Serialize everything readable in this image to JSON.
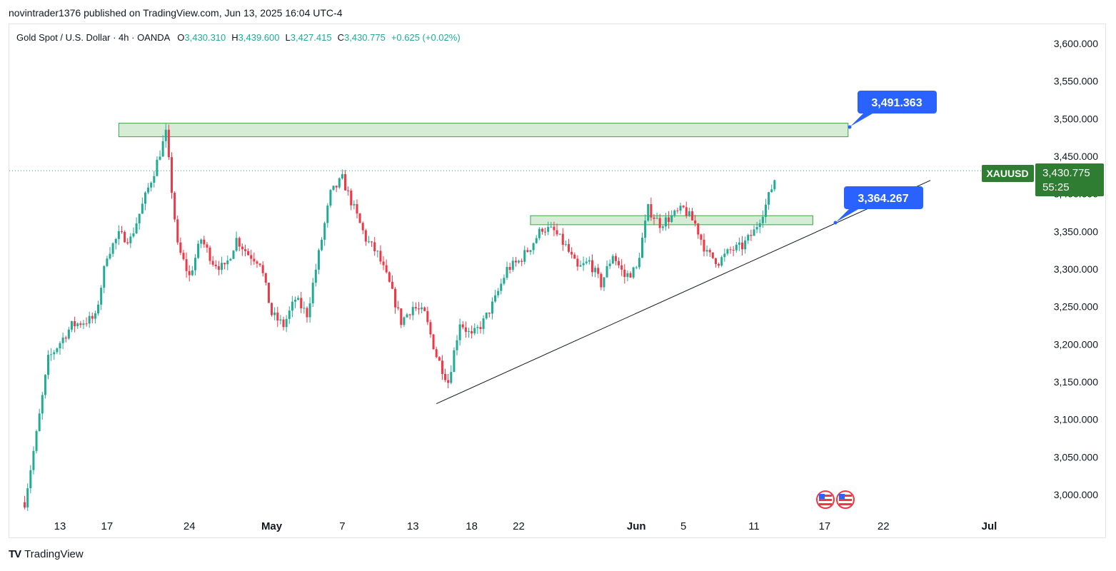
{
  "header": {
    "published_text": "novintrader1376 published on TradingView.com, Jun 13, 2025 16:04 UTC-4"
  },
  "legend": {
    "symbol": "Gold Spot / U.S. Dollar · 4h · OANDA",
    "open_label": "O",
    "open": "3,430.310",
    "high_label": "H",
    "high": "3,439.600",
    "low_label": "L",
    "low": "3,427.415",
    "close_label": "C",
    "close": "3,430.775",
    "change": "+0.625 (+0.02%)"
  },
  "price_badge": {
    "ticker": "XAUUSD",
    "price": "3,430.775",
    "countdown": "55:25"
  },
  "callouts": {
    "upper": "3,491.363",
    "lower": "3,364.267"
  },
  "footer": {
    "brand": "TradingView",
    "logo_text": "TV"
  },
  "colors": {
    "up": "#22ab94",
    "down": "#f23645",
    "zone": "#c8e6c9",
    "callout": "#2962ff",
    "badge": "#2e7d32"
  },
  "chart_data": {
    "type": "candlestick",
    "interval": "4h",
    "y_ticks": [
      "3,000.000",
      "3,050.000",
      "3,100.000",
      "3,150.000",
      "3,200.000",
      "3,250.000",
      "3,300.000",
      "3,350.000",
      "3,400.000",
      "3,450.000",
      "3,500.000",
      "3,550.000",
      "3,600.000"
    ],
    "x_ticks": [
      "13",
      "17",
      "24",
      "May",
      "7",
      "13",
      "18",
      "22",
      "Jun",
      "5",
      "11",
      "17",
      "22",
      "Jul"
    ],
    "ylim": [
      2970,
      3630
    ],
    "anchor_points": [
      {
        "date": "Apr 10",
        "price": 2990
      },
      {
        "date": "Apr 11",
        "price": 3080
      },
      {
        "date": "Apr 12",
        "price": 3180
      },
      {
        "date": "Apr 14",
        "price": 3225
      },
      {
        "date": "Apr 16",
        "price": 3235
      },
      {
        "date": "Apr 17",
        "price": 3320
      },
      {
        "date": "Apr 18",
        "price": 3345
      },
      {
        "date": "Apr 19",
        "price": 3340
      },
      {
        "date": "Apr 21",
        "price": 3430
      },
      {
        "date": "Apr 22",
        "price": 3480
      },
      {
        "date": "Apr 23",
        "price": 3330
      },
      {
        "date": "Apr 24",
        "price": 3290
      },
      {
        "date": "Apr 25",
        "price": 3340
      },
      {
        "date": "Apr 26",
        "price": 3310
      },
      {
        "date": "Apr 27",
        "price": 3300
      },
      {
        "date": "Apr 28",
        "price": 3340
      },
      {
        "date": "Apr 29",
        "price": 3320
      },
      {
        "date": "Apr 30",
        "price": 3310
      },
      {
        "date": "May 1",
        "price": 3240
      },
      {
        "date": "May 2",
        "price": 3225
      },
      {
        "date": "May 3",
        "price": 3260
      },
      {
        "date": "May 4",
        "price": 3240
      },
      {
        "date": "May 5",
        "price": 3320
      },
      {
        "date": "May 6",
        "price": 3400
      },
      {
        "date": "May 7",
        "price": 3420
      },
      {
        "date": "May 8",
        "price": 3380
      },
      {
        "date": "May 9",
        "price": 3340
      },
      {
        "date": "May 10",
        "price": 3320
      },
      {
        "date": "May 11",
        "price": 3280
      },
      {
        "date": "May 12",
        "price": 3230
      },
      {
        "date": "May 13",
        "price": 3250
      },
      {
        "date": "May 14",
        "price": 3240
      },
      {
        "date": "May 15",
        "price": 3185
      },
      {
        "date": "May 16",
        "price": 3150
      },
      {
        "date": "May 17",
        "price": 3230
      },
      {
        "date": "May 18",
        "price": 3210
      },
      {
        "date": "May 19",
        "price": 3230
      },
      {
        "date": "May 20",
        "price": 3260
      },
      {
        "date": "May 21",
        "price": 3300
      },
      {
        "date": "May 22",
        "price": 3310
      },
      {
        "date": "May 23",
        "price": 3330
      },
      {
        "date": "May 24",
        "price": 3355
      },
      {
        "date": "May 25",
        "price": 3350
      },
      {
        "date": "May 26",
        "price": 3330
      },
      {
        "date": "May 27",
        "price": 3300
      },
      {
        "date": "May 28",
        "price": 3310
      },
      {
        "date": "May 29",
        "price": 3280
      },
      {
        "date": "May 30",
        "price": 3320
      },
      {
        "date": "May 31",
        "price": 3290
      },
      {
        "date": "Jun 1",
        "price": 3300
      },
      {
        "date": "Jun 2",
        "price": 3380
      },
      {
        "date": "Jun 3",
        "price": 3360
      },
      {
        "date": "Jun 4",
        "price": 3370
      },
      {
        "date": "Jun 5",
        "price": 3380
      },
      {
        "date": "Jun 6",
        "price": 3360
      },
      {
        "date": "Jun 7",
        "price": 3320
      },
      {
        "date": "Jun 8",
        "price": 3310
      },
      {
        "date": "Jun 9",
        "price": 3325
      },
      {
        "date": "Jun 10",
        "price": 3330
      },
      {
        "date": "Jun 11",
        "price": 3350
      },
      {
        "date": "Jun 12",
        "price": 3385
      },
      {
        "date": "Jun 13",
        "price": 3431
      }
    ],
    "zones": [
      {
        "date_from": "Apr 18",
        "date_to": "Jun 19",
        "price_from": 3476,
        "price_to": 3494
      },
      {
        "date_from": "May 23",
        "date_to": "Jun 16",
        "price_from": 3359,
        "price_to": 3371
      }
    ],
    "trendline": {
      "from": {
        "date": "May 15",
        "price": 3121
      },
      "to": {
        "date": "Jun 26",
        "price": 3418
      }
    },
    "last_price": 3430.775
  }
}
